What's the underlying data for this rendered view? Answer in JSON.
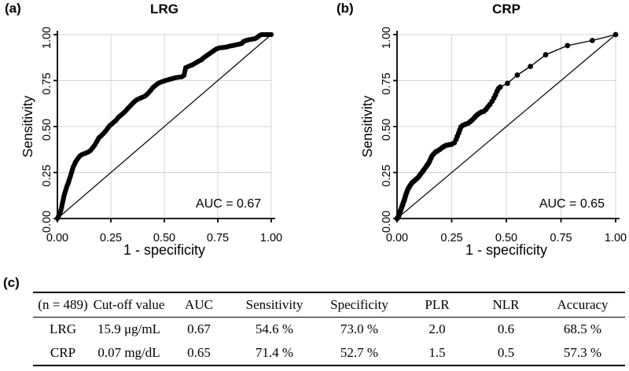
{
  "colors": {
    "background": "#ffffff",
    "curve": "#000000",
    "grid": "#d4d4d4",
    "axis": "#000000",
    "text": "#000000"
  },
  "chart_data": [
    {
      "type": "line",
      "panel_label": "(a)",
      "title": "LRG",
      "xlabel": "1 - specificity",
      "ylabel": "Sensitivity",
      "xlim": [
        0,
        1
      ],
      "ylim": [
        0,
        1
      ],
      "xticks": [
        0,
        0.25,
        0.5,
        0.75,
        1
      ],
      "yticks": [
        0,
        0.25,
        0.5,
        0.75,
        1
      ],
      "tick_decimals": 2,
      "grid": true,
      "legend": "none",
      "diagonal_reference_line": true,
      "annotation": "AUC = 0.67",
      "auc": 0.67,
      "style": {
        "band_width": 6,
        "marker_r": 3.1
      },
      "series": [
        {
          "name": "ROC curve (LRG)",
          "points": [
            [
              0,
              0
            ],
            [
              0.004,
              0.01
            ],
            [
              0.008,
              0.02
            ],
            [
              0.012,
              0.03
            ],
            [
              0.016,
              0.045
            ],
            [
              0.02,
              0.06
            ],
            [
              0.022,
              0.075
            ],
            [
              0.025,
              0.09
            ],
            [
              0.028,
              0.105
            ],
            [
              0.03,
              0.12
            ],
            [
              0.034,
              0.135
            ],
            [
              0.038,
              0.15
            ],
            [
              0.042,
              0.165
            ],
            [
              0.046,
              0.18
            ],
            [
              0.05,
              0.19
            ],
            [
              0.054,
              0.205
            ],
            [
              0.058,
              0.22
            ],
            [
              0.062,
              0.235
            ],
            [
              0.066,
              0.25
            ],
            [
              0.07,
              0.265
            ],
            [
              0.074,
              0.28
            ],
            [
              0.08,
              0.295
            ],
            [
              0.086,
              0.31
            ],
            [
              0.092,
              0.32
            ],
            [
              0.098,
              0.33
            ],
            [
              0.105,
              0.34
            ],
            [
              0.115,
              0.348
            ],
            [
              0.125,
              0.352
            ],
            [
              0.135,
              0.357
            ],
            [
              0.145,
              0.362
            ],
            [
              0.155,
              0.37
            ],
            [
              0.165,
              0.385
            ],
            [
              0.175,
              0.4
            ],
            [
              0.185,
              0.42
            ],
            [
              0.195,
              0.44
            ],
            [
              0.205,
              0.45
            ],
            [
              0.215,
              0.462
            ],
            [
              0.225,
              0.475
            ],
            [
              0.235,
              0.49
            ],
            [
              0.245,
              0.505
            ],
            [
              0.255,
              0.515
            ],
            [
              0.265,
              0.525
            ],
            [
              0.275,
              0.535
            ],
            [
              0.285,
              0.55
            ],
            [
              0.295,
              0.56
            ],
            [
              0.305,
              0.57
            ],
            [
              0.315,
              0.58
            ],
            [
              0.325,
              0.593
            ],
            [
              0.335,
              0.605
            ],
            [
              0.345,
              0.617
            ],
            [
              0.355,
              0.63
            ],
            [
              0.365,
              0.64
            ],
            [
              0.375,
              0.648
            ],
            [
              0.385,
              0.653
            ],
            [
              0.395,
              0.658
            ],
            [
              0.405,
              0.663
            ],
            [
              0.415,
              0.67
            ],
            [
              0.425,
              0.682
            ],
            [
              0.435,
              0.695
            ],
            [
              0.445,
              0.71
            ],
            [
              0.455,
              0.72
            ],
            [
              0.465,
              0.73
            ],
            [
              0.475,
              0.737
            ],
            [
              0.49,
              0.744
            ],
            [
              0.505,
              0.75
            ],
            [
              0.52,
              0.755
            ],
            [
              0.535,
              0.76
            ],
            [
              0.55,
              0.765
            ],
            [
              0.565,
              0.768
            ],
            [
              0.58,
              0.77
            ],
            [
              0.592,
              0.778
            ],
            [
              0.6,
              0.82
            ],
            [
              0.615,
              0.828
            ],
            [
              0.63,
              0.835
            ],
            [
              0.645,
              0.845
            ],
            [
              0.66,
              0.855
            ],
            [
              0.672,
              0.862
            ],
            [
              0.685,
              0.875
            ],
            [
              0.697,
              0.885
            ],
            [
              0.71,
              0.895
            ],
            [
              0.722,
              0.905
            ],
            [
              0.734,
              0.915
            ],
            [
              0.746,
              0.923
            ],
            [
              0.76,
              0.928
            ],
            [
              0.775,
              0.93
            ],
            [
              0.79,
              0.932
            ],
            [
              0.805,
              0.937
            ],
            [
              0.82,
              0.94
            ],
            [
              0.835,
              0.944
            ],
            [
              0.85,
              0.948
            ],
            [
              0.862,
              0.952
            ],
            [
              0.87,
              0.962
            ],
            [
              0.882,
              0.968
            ],
            [
              0.895,
              0.972
            ],
            [
              0.91,
              0.975
            ],
            [
              0.925,
              0.978
            ],
            [
              0.935,
              0.985
            ],
            [
              0.945,
              0.995
            ],
            [
              0.955,
              1
            ],
            [
              0.975,
              1
            ],
            [
              1,
              1
            ]
          ]
        }
      ]
    },
    {
      "type": "line",
      "panel_label": "(b)",
      "title": "CRP",
      "xlabel": "1 - specificity",
      "ylabel": "Sensitivity",
      "xlim": [
        0,
        1
      ],
      "ylim": [
        0,
        1
      ],
      "xticks": [
        0,
        0.25,
        0.5,
        0.75,
        1
      ],
      "yticks": [
        0,
        0.25,
        0.5,
        0.75,
        1
      ],
      "tick_decimals": 2,
      "grid": true,
      "legend": "none",
      "diagonal_reference_line": true,
      "annotation": "AUC = 0.65",
      "auc": 0.65,
      "style": {
        "band_width": 1.4,
        "marker_r": 3.4
      },
      "series": [
        {
          "name": "ROC curve (CRP)",
          "points": [
            [
              0,
              0
            ],
            [
              0.004,
              0.005
            ],
            [
              0.007,
              0.012
            ],
            [
              0.01,
              0.02
            ],
            [
              0.012,
              0.03
            ],
            [
              0.015,
              0.04
            ],
            [
              0.018,
              0.05
            ],
            [
              0.021,
              0.06
            ],
            [
              0.024,
              0.07
            ],
            [
              0.027,
              0.08
            ],
            [
              0.03,
              0.09
            ],
            [
              0.033,
              0.1
            ],
            [
              0.036,
              0.112
            ],
            [
              0.039,
              0.124
            ],
            [
              0.042,
              0.135
            ],
            [
              0.046,
              0.148
            ],
            [
              0.05,
              0.16
            ],
            [
              0.055,
              0.17
            ],
            [
              0.06,
              0.18
            ],
            [
              0.066,
              0.19
            ],
            [
              0.072,
              0.198
            ],
            [
              0.08,
              0.206
            ],
            [
              0.088,
              0.214
            ],
            [
              0.095,
              0.222
            ],
            [
              0.102,
              0.232
            ],
            [
              0.108,
              0.242
            ],
            [
              0.115,
              0.252
            ],
            [
              0.121,
              0.262
            ],
            [
              0.127,
              0.272
            ],
            [
              0.133,
              0.282
            ],
            [
              0.139,
              0.292
            ],
            [
              0.145,
              0.302
            ],
            [
              0.15,
              0.315
            ],
            [
              0.155,
              0.328
            ],
            [
              0.16,
              0.34
            ],
            [
              0.168,
              0.352
            ],
            [
              0.177,
              0.362
            ],
            [
              0.186,
              0.368
            ],
            [
              0.196,
              0.376
            ],
            [
              0.206,
              0.385
            ],
            [
              0.215,
              0.392
            ],
            [
              0.225,
              0.398
            ],
            [
              0.238,
              0.401
            ],
            [
              0.25,
              0.404
            ],
            [
              0.262,
              0.412
            ],
            [
              0.27,
              0.43
            ],
            [
              0.276,
              0.448
            ],
            [
              0.282,
              0.465
            ],
            [
              0.287,
              0.482
            ],
            [
              0.292,
              0.497
            ],
            [
              0.3,
              0.506
            ],
            [
              0.312,
              0.512
            ],
            [
              0.325,
              0.518
            ],
            [
              0.335,
              0.527
            ],
            [
              0.345,
              0.537
            ],
            [
              0.353,
              0.547
            ],
            [
              0.36,
              0.557
            ],
            [
              0.368,
              0.565
            ],
            [
              0.376,
              0.572
            ],
            [
              0.385,
              0.578
            ],
            [
              0.397,
              0.583
            ],
            [
              0.407,
              0.593
            ],
            [
              0.415,
              0.607
            ],
            [
              0.425,
              0.62
            ],
            [
              0.435,
              0.637
            ],
            [
              0.443,
              0.655
            ],
            [
              0.45,
              0.672
            ],
            [
              0.457,
              0.69
            ],
            [
              0.463,
              0.705
            ],
            [
              0.472,
              0.715
            ],
            [
              0.505,
              0.735
            ],
            [
              0.55,
              0.78
            ],
            [
              0.61,
              0.827
            ],
            [
              0.68,
              0.89
            ],
            [
              0.78,
              0.94
            ],
            [
              0.893,
              0.968
            ],
            [
              1,
              1
            ]
          ]
        }
      ]
    }
  ],
  "table": {
    "panel_label": "(c)",
    "headers": [
      "(n = 489)",
      "Cut-off value",
      "AUC",
      "Sensitivity",
      "Specificity",
      "PLR",
      "NLR",
      "Accuracy"
    ],
    "rows": [
      {
        "cells": [
          "LRG",
          "15.9 μg/mL",
          "0.67",
          "54.6 %",
          "73.0 %",
          "2.0",
          "0.6",
          "68.5 %"
        ]
      },
      {
        "cells": [
          "CRP",
          "0.07 mg/dL",
          "0.65",
          "71.4 %",
          "52.7 %",
          "1.5",
          "0.5",
          "57.3 %"
        ]
      }
    ]
  }
}
